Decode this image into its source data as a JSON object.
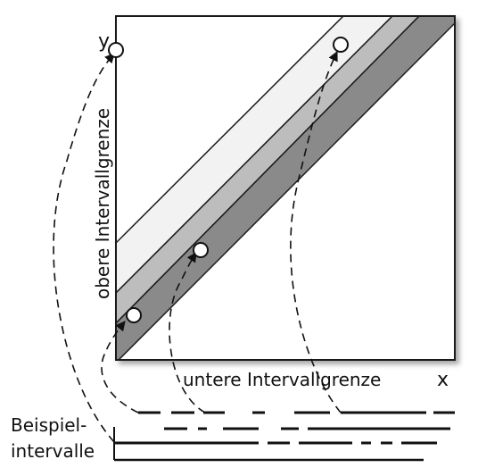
{
  "labels": {
    "y_axis_short": "y",
    "x_axis_short": "x",
    "y_axis_long": "obere Intervallgrenze",
    "x_axis_long": "untere Intervallgrenze",
    "intervals_line1": "Beispiel-",
    "intervals_line2": "intervalle"
  },
  "colors": {
    "band_light": "#f2f2f2",
    "band_mid": "#bdbdbd",
    "band_dark": "#8a8a8a",
    "stroke": "#1a1a1a",
    "point_fill": "#ffffff"
  }
}
